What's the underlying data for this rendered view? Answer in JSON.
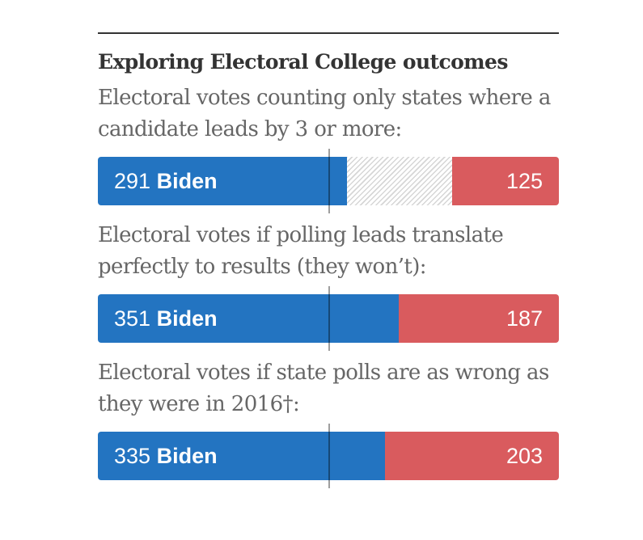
{
  "title": "Exploring Electoral College outcomes",
  "threshold": 270,
  "colors": {
    "dem": "#2374c1",
    "rep": "#d95b5e",
    "tossup": "#d6d6d6",
    "threshold": "#555555"
  },
  "chart_data": [
    {
      "type": "bar",
      "title": "Electoral votes counting only states where a candidate leads by 3 or more:",
      "total": 538,
      "dem_votes": 291,
      "rep_votes": 125,
      "tossup_votes": 122,
      "dem_text": "291",
      "dem_name": "Biden",
      "rep_text": "125",
      "threshold": 270
    },
    {
      "type": "bar",
      "title": "Electoral votes if polling leads translate perfectly to results (they won’t):",
      "total": 538,
      "dem_votes": 351,
      "rep_votes": 187,
      "tossup_votes": 0,
      "dem_text": "351",
      "dem_name": "Biden",
      "rep_text": "187",
      "threshold": 270
    },
    {
      "type": "bar",
      "title": "Electoral votes if state polls are as wrong as they were in 2016†:",
      "total": 538,
      "dem_votes": 335,
      "rep_votes": 203,
      "tossup_votes": 0,
      "dem_text": "335",
      "dem_name": "Biden",
      "rep_text": "203",
      "threshold": 270
    }
  ]
}
